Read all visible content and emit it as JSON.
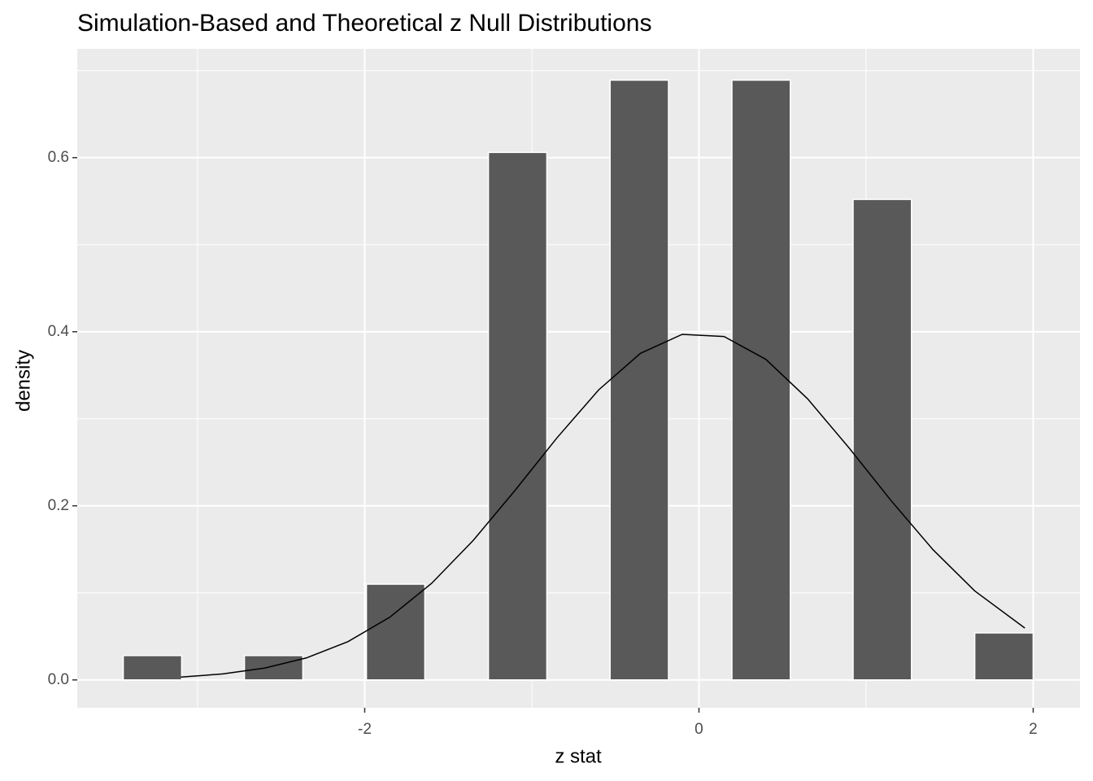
{
  "chart_data": {
    "type": "bar",
    "title": "Simulation-Based and Theoretical z Null Distributions",
    "x_label": "z stat",
    "y_label": "density",
    "x": [
      -3.27,
      -2.545,
      -1.815,
      -1.085,
      -0.357,
      0.372,
      1.097,
      1.825
    ],
    "values": [
      0.028,
      0.028,
      0.11,
      0.606,
      0.689,
      0.689,
      0.552,
      0.054
    ],
    "color": "#595959",
    "xlim": [
      -3.72,
      2.28
    ],
    "ylim": [
      -0.032,
      0.725
    ],
    "xticks": [
      -2,
      0,
      2
    ],
    "yticks": [
      {
        "value": 0,
        "label": "0.0"
      },
      0.2,
      0.4,
      0.6
    ],
    "grid": true,
    "overlay": {
      "type": "line",
      "color": "#000000",
      "x": [
        -3.1,
        -2.85,
        -2.6,
        -2.35,
        -2.1,
        -1.85,
        -1.6,
        -1.35,
        -1.1,
        -0.85,
        -0.6,
        -0.35,
        -0.1,
        0.15,
        0.4,
        0.65,
        0.9,
        1.15,
        1.4,
        1.65,
        1.95
      ],
      "values": [
        0.00327,
        0.00687,
        0.01358,
        0.02522,
        0.04398,
        0.07206,
        0.1109,
        0.1604,
        0.2179,
        0.278,
        0.3332,
        0.3752,
        0.397,
        0.3945,
        0.3683,
        0.323,
        0.2661,
        0.2059,
        0.1497,
        0.1023,
        0.0596
      ]
    }
  }
}
